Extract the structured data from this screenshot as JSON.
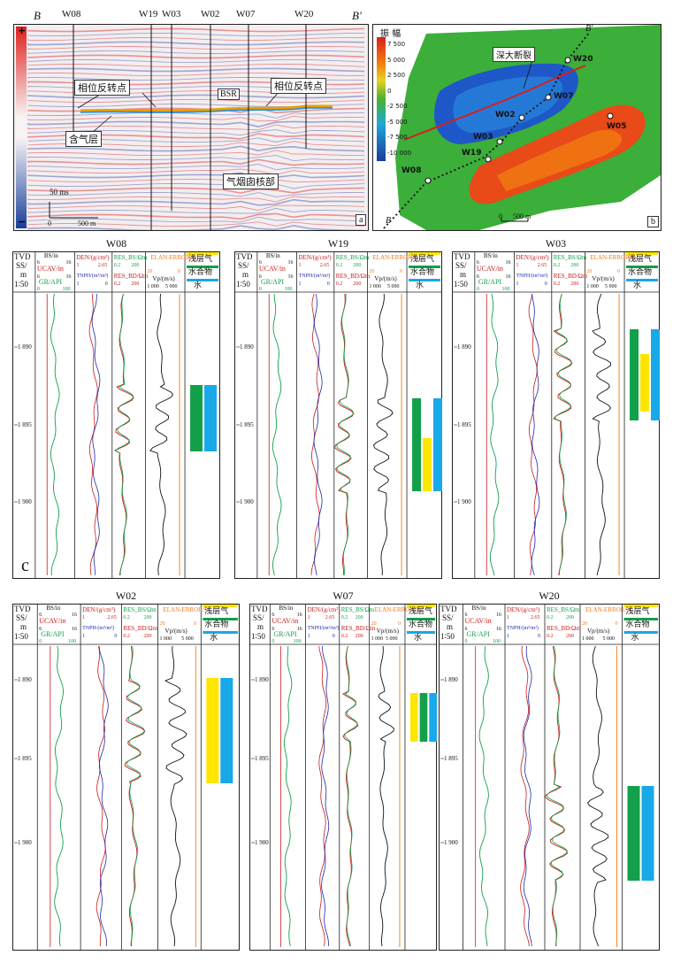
{
  "fig_a": {
    "left_label": "B",
    "right_label": "B'",
    "wells": [
      "W08",
      "W19",
      "W03",
      "W02",
      "W07",
      "W20"
    ],
    "ann_phase1": "相位反转点",
    "ann_phase2": "相位反转点",
    "ann_gas": "含气层",
    "ann_bsr": "BSR",
    "ann_chimney": "气烟囱核部",
    "scale_time": "50 ms",
    "scale_0": "0",
    "scale_dist": "500 m",
    "plus": "+",
    "minus": "−",
    "panel": "a"
  },
  "fig_b": {
    "amp_title": "振  幅",
    "amp_ticks": [
      "7 500",
      "5 000",
      "2 500",
      "0",
      "-2 500",
      "-5 000",
      "-7 500",
      "-10 000"
    ],
    "fault": "深大断裂",
    "B": "B",
    "Bp": "B'",
    "wells": [
      {
        "name": "W20"
      },
      {
        "name": "W07"
      },
      {
        "name": "W02"
      },
      {
        "name": "W05"
      },
      {
        "name": "W03"
      },
      {
        "name": "W19"
      },
      {
        "name": "W08"
      }
    ],
    "scale_0": "0",
    "scale_dist": "500 m",
    "panel": "b"
  },
  "logs": {
    "panel": "c",
    "tvd": [
      "TVD",
      "SS/",
      "m",
      "1∶50"
    ],
    "legend": [
      "浅层气",
      "水合物",
      "水"
    ],
    "depths": [
      "1 890",
      "1 895",
      "1 900"
    ],
    "h_bs": "BS/in",
    "h_ucav": "UCAV/in",
    "h_gr": "GR/API",
    "h_den": "DEN/(g/cm³)",
    "h_tnph": "TNPH/(m³/m³)",
    "h_resbs": "RES_BS/Ωm",
    "h_resbd": "RES_BD/Ωm",
    "h_elan": "ELAN-ERROR/%",
    "h_vp": "Vp/(m/s)",
    "t_6": "6",
    "t_16": "16",
    "t_0": "0",
    "t_100": "100",
    "t_1": "1",
    "t_265": "2.65",
    "t_02": "0.2",
    "t_200": "200",
    "t_20": "20",
    "t_1000": "1 000",
    "t_5000": "5 000",
    "wells": [
      "W08",
      "W19",
      "W03",
      "W02",
      "W07",
      "W20"
    ],
    "colors": {
      "gas": "#ffe600",
      "hyd": "#12a04a",
      "water": "#19a8e8"
    }
  }
}
